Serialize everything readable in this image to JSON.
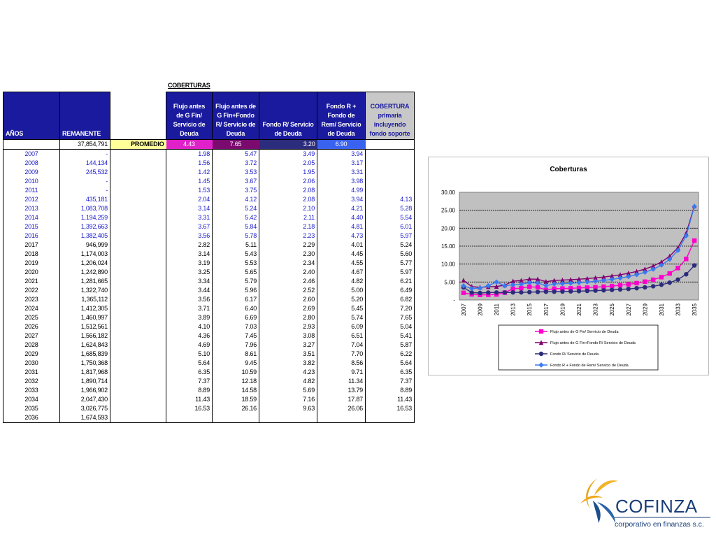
{
  "section_title": "COBERTURAS",
  "headers": {
    "years": "AÑOS",
    "remanente": "REMANENTE",
    "col1": [
      "Flujo antes",
      "de G Fin/",
      "Servicio de",
      "Deuda"
    ],
    "col2": [
      "Flujo antes de",
      "G Fin+Fondo",
      "R/ Servicio de",
      "Deuda"
    ],
    "col3": [
      "Fondo R/ Servicio",
      "de Deuda"
    ],
    "col4": [
      "Fondo R +",
      "Fondo de",
      "Rem/ Servicio",
      "de Deuda"
    ],
    "col5": [
      "COBERTURA",
      "primaria",
      "incluyendo",
      "fondo soporte"
    ]
  },
  "average_row": {
    "remanente": "37,854,791",
    "label": "PROMEDIO",
    "v1": "4.43",
    "v2": "7.65",
    "v3": "3.20",
    "v4": "6.90"
  },
  "rows": [
    {
      "year": "2007",
      "rem": "-",
      "v1": "1.98",
      "v2": "5.47",
      "v3": "3.49",
      "v4": "3.94",
      "v5": "",
      "blue": true
    },
    {
      "year": "2008",
      "rem": "144,134",
      "v1": "1.56",
      "v2": "3.72",
      "v3": "2.05",
      "v4": "3.17",
      "v5": "",
      "blue": true
    },
    {
      "year": "2009",
      "rem": "245,532",
      "v1": "1.42",
      "v2": "3.53",
      "v3": "1.95",
      "v4": "3.31",
      "v5": "",
      "blue": true
    },
    {
      "year": "2010",
      "rem": "-",
      "v1": "1.45",
      "v2": "3.67",
      "v3": "2.06",
      "v4": "3.98",
      "v5": "",
      "blue": true
    },
    {
      "year": "2011",
      "rem": "-",
      "v1": "1.53",
      "v2": "3.75",
      "v3": "2.08",
      "v4": "4.99",
      "v5": "",
      "blue": true
    },
    {
      "year": "2012",
      "rem": "435,181",
      "v1": "2.04",
      "v2": "4.12",
      "v3": "2.08",
      "v4": "3.94",
      "v5": "4.13",
      "blue": true
    },
    {
      "year": "2013",
      "rem": "1,083,708",
      "v1": "3.14",
      "v2": "5.24",
      "v3": "2.10",
      "v4": "4.21",
      "v5": "5.28",
      "blue": true
    },
    {
      "year": "2014",
      "rem": "1,194,259",
      "v1": "3.31",
      "v2": "5.42",
      "v3": "2.11",
      "v4": "4.40",
      "v5": "5.54",
      "blue": true
    },
    {
      "year": "2015",
      "rem": "1,392,663",
      "v1": "3.67",
      "v2": "5.84",
      "v3": "2.18",
      "v4": "4.81",
      "v5": "6.01",
      "blue": true
    },
    {
      "year": "2016",
      "rem": "1,382,405",
      "v1": "3.56",
      "v2": "5.78",
      "v3": "2.23",
      "v4": "4.73",
      "v5": "5.97",
      "blue": true
    },
    {
      "year": "2017",
      "rem": "946,999",
      "v1": "2.82",
      "v2": "5.11",
      "v3": "2.29",
      "v4": "4.01",
      "v5": "5.24",
      "blue": false
    },
    {
      "year": "2018",
      "rem": "1,174,003",
      "v1": "3.14",
      "v2": "5.43",
      "v3": "2.30",
      "v4": "4.45",
      "v5": "5.60",
      "blue": false
    },
    {
      "year": "2019",
      "rem": "1,206,024",
      "v1": "3.19",
      "v2": "5.53",
      "v3": "2.34",
      "v4": "4.55",
      "v5": "5.77",
      "blue": false
    },
    {
      "year": "2020",
      "rem": "1,242,890",
      "v1": "3.25",
      "v2": "5.65",
      "v3": "2.40",
      "v4": "4.67",
      "v5": "5.97",
      "blue": false
    },
    {
      "year": "2021",
      "rem": "1,281,665",
      "v1": "3.34",
      "v2": "5.79",
      "v3": "2.46",
      "v4": "4.82",
      "v5": "6.21",
      "blue": false
    },
    {
      "year": "2022",
      "rem": "1,322,740",
      "v1": "3.44",
      "v2": "5.96",
      "v3": "2.52",
      "v4": "5.00",
      "v5": "6.49",
      "blue": false
    },
    {
      "year": "2023",
      "rem": "1,365,112",
      "v1": "3.56",
      "v2": "6.17",
      "v3": "2.60",
      "v4": "5.20",
      "v5": "6.82",
      "blue": false
    },
    {
      "year": "2024",
      "rem": "1,412,305",
      "v1": "3.71",
      "v2": "6.40",
      "v3": "2.69",
      "v4": "5.45",
      "v5": "7.20",
      "blue": false
    },
    {
      "year": "2025",
      "rem": "1,460,997",
      "v1": "3.89",
      "v2": "6.69",
      "v3": "2.80",
      "v4": "5.74",
      "v5": "7.65",
      "blue": false
    },
    {
      "year": "2026",
      "rem": "1,512,561",
      "v1": "4.10",
      "v2": "7.03",
      "v3": "2.93",
      "v4": "6.09",
      "v5": "5.04",
      "blue": false
    },
    {
      "year": "2027",
      "rem": "1,566,182",
      "v1": "4.36",
      "v2": "7.45",
      "v3": "3.08",
      "v4": "6.51",
      "v5": "5.41",
      "blue": false
    },
    {
      "year": "2028",
      "rem": "1,624,843",
      "v1": "4.69",
      "v2": "7.96",
      "v3": "3.27",
      "v4": "7.04",
      "v5": "5.87",
      "blue": false
    },
    {
      "year": "2029",
      "rem": "1,685,839",
      "v1": "5.10",
      "v2": "8.61",
      "v3": "3.51",
      "v4": "7.70",
      "v5": "6.22",
      "blue": false
    },
    {
      "year": "2030",
      "rem": "1,750,368",
      "v1": "5.64",
      "v2": "9.45",
      "v3": "3.82",
      "v4": "8.56",
      "v5": "5.64",
      "blue": false
    },
    {
      "year": "2031",
      "rem": "1,817,968",
      "v1": "6.35",
      "v2": "10.59",
      "v3": "4.23",
      "v4": "9.71",
      "v5": "6.35",
      "blue": false
    },
    {
      "year": "2032",
      "rem": "1,890,714",
      "v1": "7.37",
      "v2": "12.18",
      "v3": "4.82",
      "v4": "11.34",
      "v5": "7.37",
      "blue": false
    },
    {
      "year": "2033",
      "rem": "1,966,902",
      "v1": "8.89",
      "v2": "14.58",
      "v3": "5.69",
      "v4": "13.79",
      "v5": "8.89",
      "blue": false
    },
    {
      "year": "2034",
      "rem": "2,047,430",
      "v1": "11.43",
      "v2": "18.59",
      "v3": "7.16",
      "v4": "17.87",
      "v5": "11.43",
      "blue": false
    },
    {
      "year": "2035",
      "rem": "3,026,775",
      "v1": "16.53",
      "v2": "26.16",
      "v3": "9.63",
      "v4": "26.06",
      "v5": "16.53",
      "blue": false
    },
    {
      "year": "2036",
      "rem": "1,674,593",
      "v1": "",
      "v2": "",
      "v3": "",
      "v4": "",
      "v5": "",
      "blue": false
    }
  ],
  "chart_data": {
    "type": "line",
    "title": "Coberturas",
    "x": [
      "2007",
      "2008",
      "2009",
      "2010",
      "2011",
      "2012",
      "2013",
      "2014",
      "2015",
      "2016",
      "2017",
      "2018",
      "2019",
      "2020",
      "2021",
      "2022",
      "2023",
      "2024",
      "2025",
      "2026",
      "2027",
      "2028",
      "2029",
      "2030",
      "2031",
      "2032",
      "2033",
      "2034",
      "2035"
    ],
    "xtick_labels": [
      "2007",
      "2009",
      "2011",
      "2013",
      "2015",
      "2017",
      "2019",
      "2021",
      "2023",
      "2025",
      "2027",
      "2029",
      "2031",
      "2033",
      "2035"
    ],
    "ylim": [
      0,
      30
    ],
    "ytick_labels": [
      "-",
      "5.00",
      "10.00",
      "15.00",
      "20.00",
      "25.00",
      "30.00"
    ],
    "grid": true,
    "legend_position": "bottom",
    "series": [
      {
        "name": "Flujo antes de G Fin/ Servicio de Deuda",
        "color": "#ff00cc",
        "marker": "square",
        "values": [
          1.98,
          1.56,
          1.42,
          1.45,
          1.53,
          2.04,
          3.14,
          3.31,
          3.67,
          3.56,
          2.82,
          3.14,
          3.19,
          3.25,
          3.34,
          3.44,
          3.56,
          3.71,
          3.89,
          4.1,
          4.36,
          4.69,
          5.1,
          5.64,
          6.35,
          7.37,
          8.89,
          11.43,
          16.53
        ]
      },
      {
        "name": "Flujo antes de G Fin+Fondo R/ Servicio de Deuda",
        "color": "#800070",
        "marker": "triangle",
        "values": [
          5.47,
          3.72,
          3.53,
          3.67,
          3.75,
          4.12,
          5.24,
          5.42,
          5.84,
          5.78,
          5.11,
          5.43,
          5.53,
          5.65,
          5.79,
          5.96,
          6.17,
          6.4,
          6.69,
          7.03,
          7.45,
          7.96,
          8.61,
          9.45,
          10.59,
          12.18,
          14.58,
          18.59,
          26.16
        ]
      },
      {
        "name": "Fondo R/ Servicio de Deuda",
        "color": "#2c2c7c",
        "marker": "circle",
        "values": [
          3.49,
          2.05,
          1.95,
          2.06,
          2.08,
          2.08,
          2.1,
          2.11,
          2.18,
          2.23,
          2.29,
          2.3,
          2.34,
          2.4,
          2.46,
          2.52,
          2.6,
          2.69,
          2.8,
          2.93,
          3.08,
          3.27,
          3.51,
          3.82,
          4.23,
          4.82,
          5.69,
          7.16,
          9.63
        ]
      },
      {
        "name": "Fondo R + Fondo de Rem/ Servicio de Deuda",
        "color": "#3a7af0",
        "marker": "diamond",
        "values": [
          3.94,
          3.17,
          3.31,
          3.98,
          4.99,
          3.94,
          4.21,
          4.4,
          4.81,
          4.73,
          4.01,
          4.45,
          4.55,
          4.67,
          4.82,
          5.0,
          5.2,
          5.45,
          5.74,
          6.09,
          6.51,
          7.04,
          7.7,
          8.56,
          9.71,
          11.34,
          13.79,
          17.87,
          26.06
        ]
      }
    ]
  },
  "logo": {
    "name": "COFINZA",
    "tagline": "corporativo en finanzas s.c."
  }
}
